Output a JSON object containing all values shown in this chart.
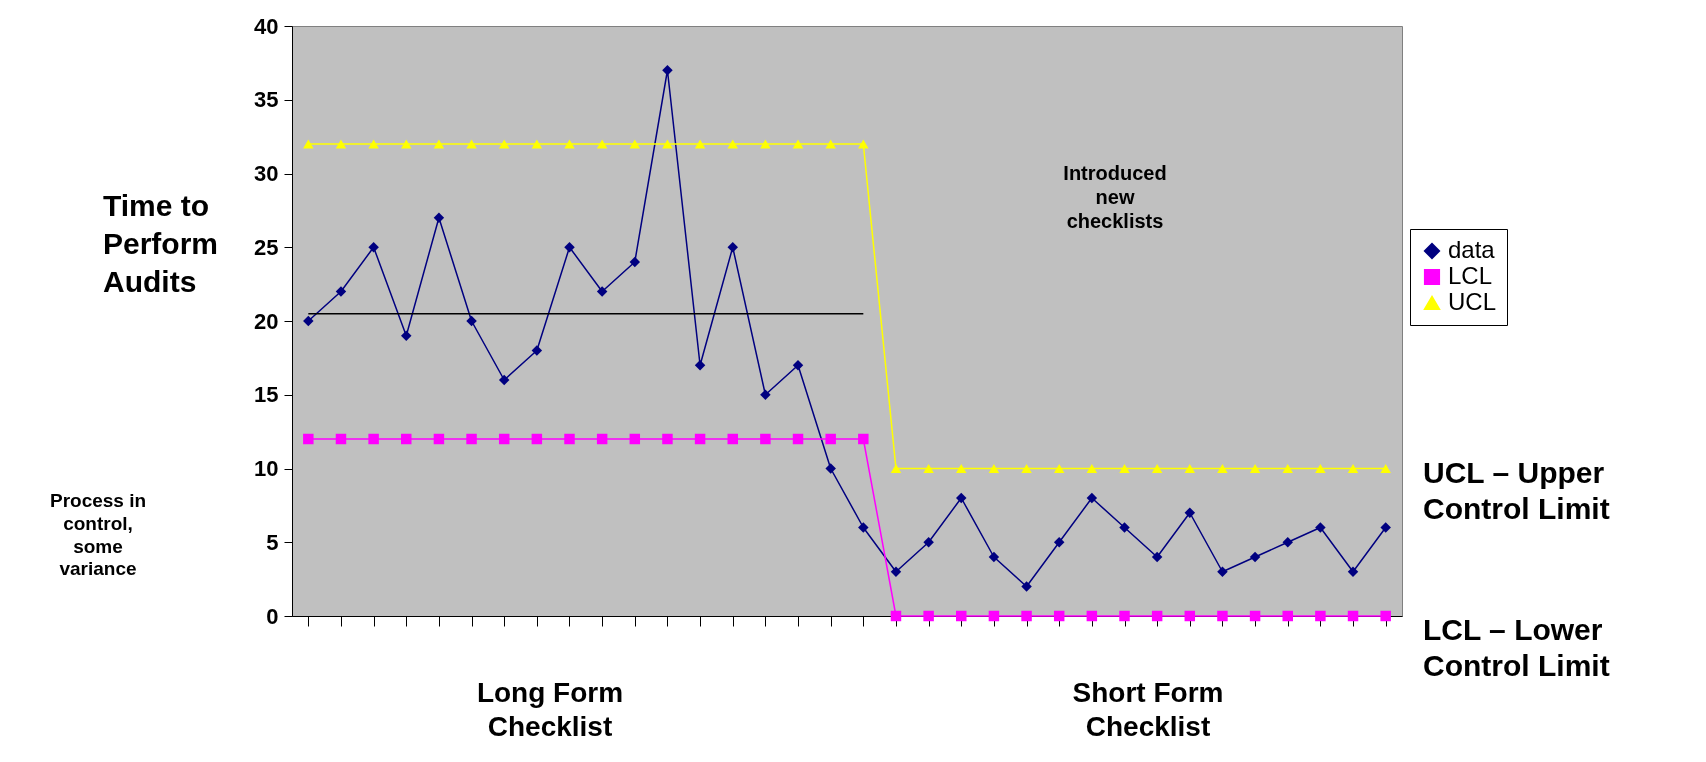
{
  "chart_data": {
    "type": "line",
    "ylabel": "Time to\nPerform\nAudits",
    "categories": [
      null,
      null,
      null,
      null,
      null,
      null,
      null,
      null,
      null,
      null,
      null,
      null,
      null,
      null,
      null,
      null,
      null,
      null,
      null,
      null,
      null,
      null,
      null,
      null,
      null,
      null,
      null,
      null,
      null,
      null,
      null,
      null,
      null,
      null
    ],
    "series": [
      {
        "name": "data",
        "color": "#000080",
        "marker": "diamond",
        "values": [
          20,
          22,
          25,
          19,
          27,
          20,
          16,
          18,
          25,
          22,
          24,
          37,
          17,
          25,
          15,
          17,
          10,
          6,
          3,
          5,
          8,
          4,
          2,
          5,
          8,
          6,
          4,
          7,
          3,
          4,
          5,
          6,
          3,
          6
        ]
      },
      {
        "name": "LCL",
        "color": "#ff00ff",
        "marker": "square",
        "values": [
          12,
          12,
          12,
          12,
          12,
          12,
          12,
          12,
          12,
          12,
          12,
          12,
          12,
          12,
          12,
          12,
          12,
          12,
          0,
          0,
          0,
          0,
          0,
          0,
          0,
          0,
          0,
          0,
          0,
          0,
          0,
          0,
          0,
          0
        ]
      },
      {
        "name": "UCL",
        "color": "#ffff00",
        "marker": "triangle",
        "values": [
          32,
          32,
          32,
          32,
          32,
          32,
          32,
          32,
          32,
          32,
          32,
          32,
          32,
          32,
          32,
          32,
          32,
          32,
          10,
          10,
          10,
          10,
          10,
          10,
          10,
          10,
          10,
          10,
          10,
          10,
          10,
          10,
          10,
          10
        ]
      },
      {
        "color": "#000000",
        "marker": "none",
        "values": [
          20.5,
          20.5,
          20.5,
          20.5,
          20.5,
          20.5,
          20.5,
          20.5,
          20.5,
          20.5,
          20.5,
          20.5,
          20.5,
          20.5,
          20.5,
          20.5,
          20.5,
          20.5,
          null,
          null,
          null,
          null,
          null,
          null,
          null,
          null,
          null,
          null,
          null,
          null,
          null,
          null,
          null,
          null
        ]
      }
    ],
    "ylim": [
      0,
      40
    ],
    "yticks": [
      0,
      5,
      10,
      15,
      20,
      25,
      30,
      35,
      40
    ],
    "grid": false,
    "legend": "right",
    "tick_labels": "y",
    "annotations": [
      "Introduced\nnew\nchecklists",
      "Process in\ncontrol,\nsome\nvariance",
      "Long Form\nChecklist",
      "Short Form\nChecklist",
      "UCL – Upper\nControl Limit",
      "LCL – Lower\nControl Limit"
    ]
  }
}
